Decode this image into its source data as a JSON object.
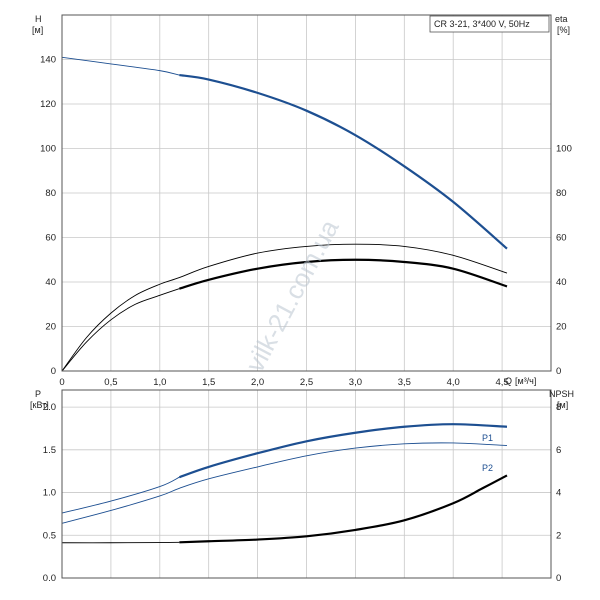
{
  "watermark": "vilk-21.com.ua",
  "chart_data": [
    {
      "type": "line",
      "panel": "head-efficiency",
      "title": "CR 3-21, 3*400 V, 50Hz",
      "left_axis": {
        "label": "H",
        "unit": "[м]",
        "ticks": [
          0,
          20,
          40,
          60,
          80,
          100,
          120,
          140
        ],
        "range": [
          0,
          160
        ]
      },
      "right_axis": {
        "label": "eta",
        "unit": "[%]",
        "ticks": [
          0,
          20,
          40,
          60,
          80,
          100
        ],
        "range": [
          0,
          160
        ]
      },
      "x_axis": {
        "label": "Q",
        "unit": "[м³/ч]",
        "ticks": [
          "0",
          "0,5",
          "1,0",
          "1,5",
          "2,0",
          "2,5",
          "3,0",
          "3,5",
          "4,0",
          "4,5"
        ],
        "tick_values": [
          0,
          0.5,
          1,
          1.5,
          2,
          2.5,
          3,
          3.5,
          4,
          4.5
        ],
        "range": [
          0,
          5
        ]
      },
      "grid": true,
      "series": [
        {
          "id": "H",
          "color": "#1d4f91",
          "axis": "left",
          "thin_until": 1.2,
          "x": [
            0,
            0.5,
            1.0,
            1.2,
            1.5,
            2.0,
            2.5,
            3.0,
            3.5,
            4.0,
            4.55
          ],
          "y": [
            141,
            138,
            135,
            133,
            131,
            125,
            117,
            106,
            92,
            76,
            55
          ]
        },
        {
          "id": "eta_thin",
          "color": "#000000",
          "axis": "right",
          "thin_until": 99,
          "x": [
            0,
            0.25,
            0.5,
            0.75,
            1.0,
            1.2,
            1.5,
            2.0,
            2.5,
            3.0,
            3.5,
            4.0,
            4.55
          ],
          "y": [
            0,
            15,
            26,
            34,
            39,
            42,
            47,
            53,
            56,
            57,
            56,
            52,
            44
          ]
        },
        {
          "id": "eta",
          "color": "#000000",
          "axis": "right",
          "thin_until": 1.2,
          "x": [
            0,
            0.25,
            0.5,
            0.75,
            1.0,
            1.2,
            1.5,
            2.0,
            2.5,
            3.0,
            3.5,
            4.0,
            4.55
          ],
          "y": [
            0,
            13,
            23,
            30,
            34,
            37,
            41,
            46,
            49,
            50,
            49,
            46,
            38
          ]
        }
      ]
    },
    {
      "type": "line",
      "panel": "power-npsh",
      "left_axis": {
        "label": "P",
        "unit": "[кВт]",
        "ticks": [
          "0.0",
          "0.5",
          "1.0",
          "1.5",
          "2.0"
        ],
        "tick_values": [
          0,
          0.5,
          1,
          1.5,
          2
        ],
        "range": [
          0,
          2.2
        ]
      },
      "right_axis": {
        "label": "NPSH",
        "unit": "[м]",
        "ticks": [
          "0",
          "2",
          "4",
          "6",
          "8"
        ],
        "tick_values": [
          0,
          2,
          4,
          6,
          8
        ],
        "range": [
          0,
          8.8
        ]
      },
      "x_axis": {
        "range": [
          0,
          5
        ]
      },
      "grid": true,
      "series": [
        {
          "id": "P1",
          "name": "P1",
          "color": "#1d4f91",
          "axis": "left",
          "thin_until": 1.2,
          "x": [
            0,
            0.5,
            1.0,
            1.2,
            1.5,
            2.0,
            2.5,
            3.0,
            3.5,
            4.0,
            4.55
          ],
          "y": [
            0.76,
            0.9,
            1.07,
            1.18,
            1.3,
            1.46,
            1.6,
            1.7,
            1.77,
            1.8,
            1.77
          ]
        },
        {
          "id": "P2",
          "name": "P2",
          "color": "#1d4f91",
          "axis": "left",
          "thin_until": 99,
          "x": [
            0,
            0.5,
            1.0,
            1.2,
            1.5,
            2.0,
            2.5,
            3.0,
            3.5,
            4.0,
            4.55
          ],
          "y": [
            0.64,
            0.79,
            0.96,
            1.05,
            1.16,
            1.3,
            1.43,
            1.52,
            1.57,
            1.58,
            1.55
          ]
        },
        {
          "id": "NPSH",
          "color": "#000000",
          "axis": "right",
          "thin_until": 1.2,
          "x": [
            0,
            0.5,
            1.0,
            1.2,
            1.5,
            2.0,
            2.5,
            3.0,
            3.5,
            4.0,
            4.3,
            4.55
          ],
          "y": [
            1.65,
            1.65,
            1.66,
            1.67,
            1.72,
            1.8,
            1.95,
            2.25,
            2.7,
            3.5,
            4.2,
            4.8
          ]
        }
      ]
    }
  ]
}
